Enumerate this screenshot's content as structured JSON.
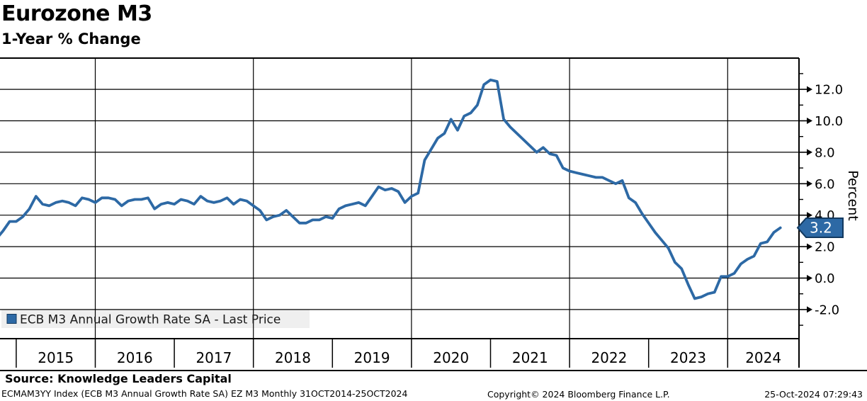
{
  "header": {
    "title": "Eurozone M3",
    "subtitle": "1-Year % Change"
  },
  "legend": {
    "label": "ECB M3 Annual Growth Rate SA - Last Price"
  },
  "y_axis": {
    "title": "Percent",
    "major_ticks": [
      "12.0",
      "10.0",
      "8.0",
      "6.0",
      "4.0",
      "2.0",
      "0.0",
      "-2.0"
    ],
    "last_price_badge": "3.2"
  },
  "x_axis": {
    "years": [
      "2015",
      "2016",
      "2017",
      "2018",
      "2019",
      "2020",
      "2021",
      "2022",
      "2023",
      "2024"
    ]
  },
  "footer": {
    "source": "Source: Knowledge Leaders Capital",
    "security": "ECMAM3YY Index (ECB M3 Annual Growth Rate SA) EZ M3  Monthly 31OCT2014-25OCT2024",
    "copyright": "Copyright© 2024 Bloomberg Finance L.P.",
    "timestamp": "25-Oct-2024 07:29:43"
  },
  "colors": {
    "line": "#2d69a5",
    "badge_fill": "#2d69a5",
    "badge_border": "#12395f",
    "badge_text": "#ffffff",
    "legend_bg": "#efefef",
    "grid": "#000000"
  },
  "chart_data": {
    "type": "line",
    "title": "Eurozone M3",
    "subtitle": "1-Year % Change",
    "series_name": "ECB M3 Annual Growth Rate SA - Last Price",
    "frequency": "monthly",
    "x_start": "2014-10",
    "x_end": "2024-09",
    "ylabel": "Percent",
    "ylim": [
      -4,
      14
    ],
    "y_major_step": 2,
    "grid": true,
    "legend_position": "bottom-left",
    "last_price": 3.2,
    "year_gridlines": [
      2016,
      2018,
      2020,
      2022,
      2024
    ],
    "values": [
      2.5,
      3.0,
      3.6,
      3.6,
      3.9,
      4.4,
      5.2,
      4.7,
      4.6,
      4.8,
      4.9,
      4.8,
      4.6,
      5.1,
      5.0,
      4.8,
      5.1,
      5.1,
      5.0,
      4.6,
      4.9,
      5.0,
      5.0,
      5.1,
      4.4,
      4.7,
      4.8,
      4.7,
      5.0,
      4.9,
      4.7,
      5.2,
      4.9,
      4.8,
      4.9,
      5.1,
      4.7,
      5.0,
      4.9,
      4.6,
      4.3,
      3.7,
      3.9,
      4.0,
      4.3,
      3.9,
      3.5,
      3.5,
      3.7,
      3.7,
      3.9,
      3.8,
      4.4,
      4.6,
      4.7,
      4.8,
      4.6,
      5.2,
      5.8,
      5.6,
      5.7,
      5.5,
      4.8,
      5.2,
      5.4,
      7.5,
      8.2,
      8.9,
      9.2,
      10.1,
      9.4,
      10.3,
      10.5,
      11.0,
      12.3,
      12.6,
      12.5,
      10.1,
      9.6,
      9.2,
      8.8,
      8.4,
      8.0,
      8.3,
      7.9,
      7.8,
      7.0,
      6.8,
      6.7,
      6.6,
      6.5,
      6.4,
      6.4,
      6.2,
      6.0,
      6.2,
      5.1,
      4.8,
      4.1,
      3.5,
      2.9,
      2.4,
      1.9,
      1.0,
      0.6,
      -0.4,
      -1.3,
      -1.2,
      -1.0,
      -0.9,
      0.1,
      0.1,
      0.3,
      0.9,
      1.2,
      1.4,
      2.2,
      2.3,
      2.9,
      3.2
    ]
  }
}
